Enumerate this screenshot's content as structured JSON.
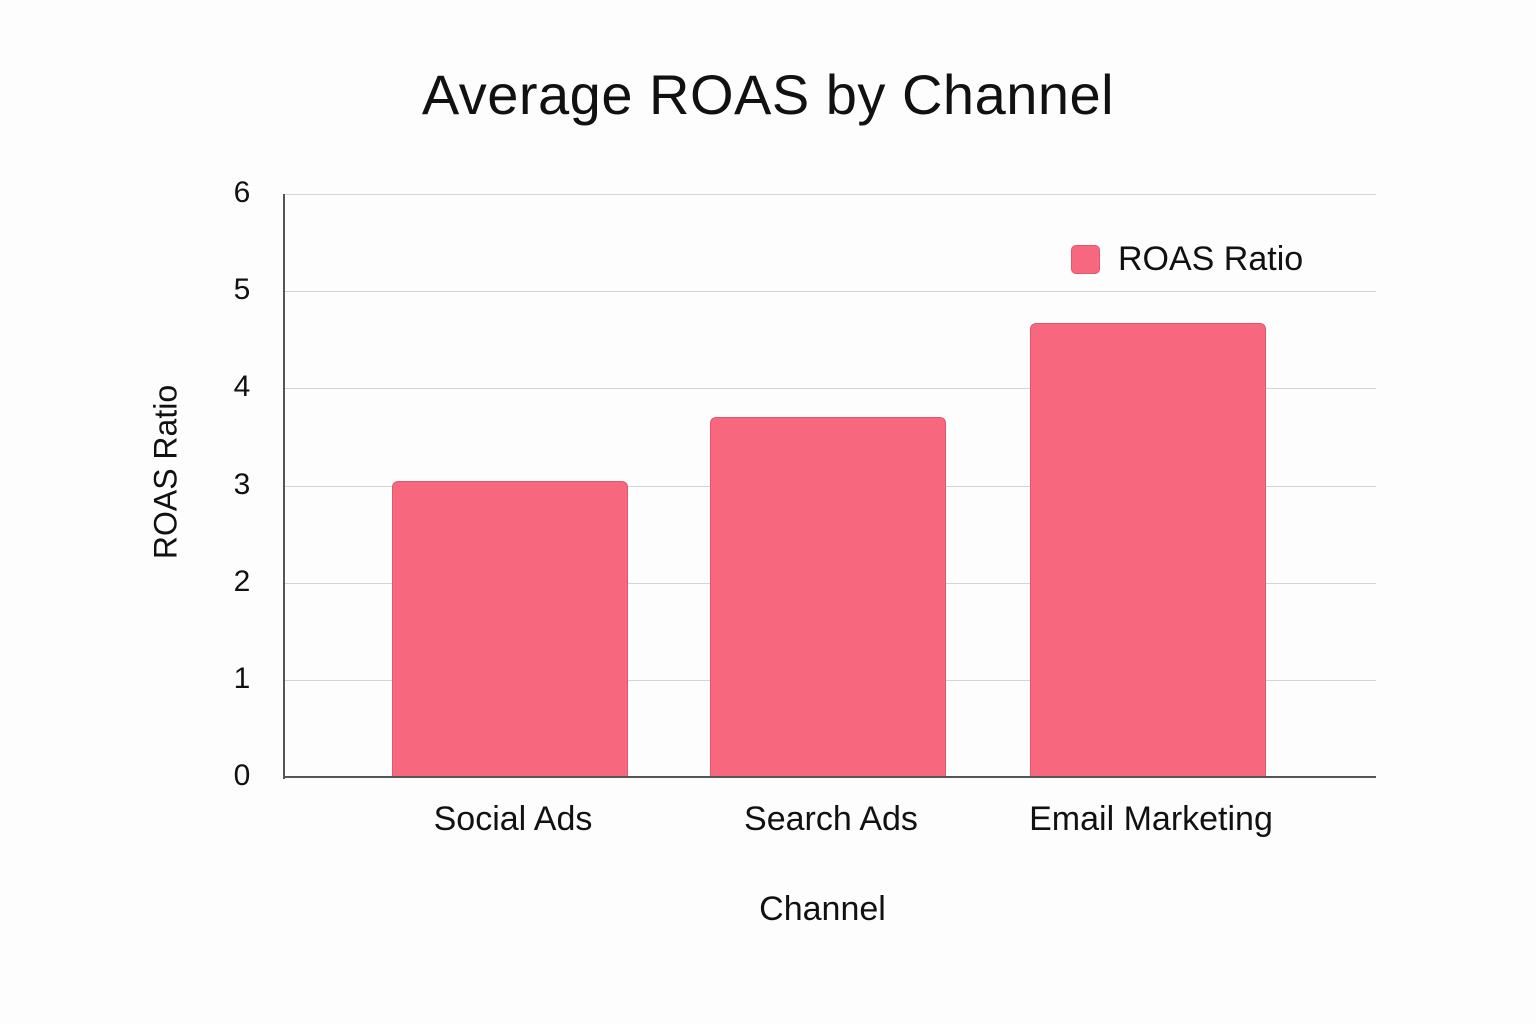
{
  "chart_data": {
    "type": "bar",
    "title": "Average ROAS by Channel",
    "xlabel": "Channel",
    "ylabel": "ROAS Ratio",
    "categories": [
      "Social Ads",
      "Search Ads",
      "Email Marketing"
    ],
    "series": [
      {
        "name": "ROAS Ratio",
        "values": [
          3.05,
          3.7,
          4.67
        ],
        "color": "#f7687e"
      }
    ],
    "ylim": [
      0,
      6
    ],
    "yticks": [
      "0",
      "1",
      "2",
      "3",
      "4",
      "5",
      "6"
    ],
    "grid": true,
    "legend_position": "upper right"
  }
}
